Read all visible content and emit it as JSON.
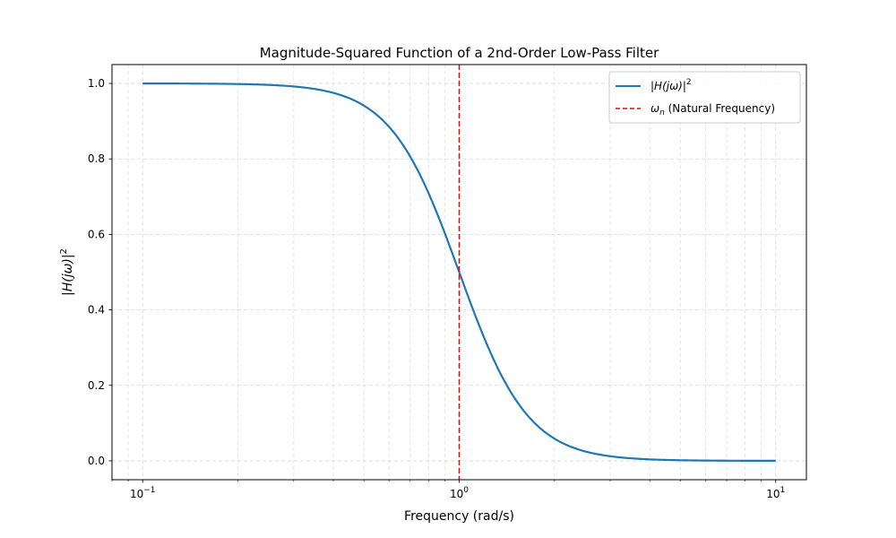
{
  "chart_data": {
    "type": "line",
    "title": "Magnitude-Squared Function of a 2nd-Order Low-Pass Filter",
    "xlabel": "Frequency (rad/s)",
    "ylabel_base": "|H(jω)|",
    "ylabel_sup": "2",
    "xscale": "log",
    "xlim": [
      0.08,
      12.5
    ],
    "ylim": [
      -0.05,
      1.05
    ],
    "x_ticks": [
      {
        "value": 0.1,
        "base": "10",
        "exp": "−1"
      },
      {
        "value": 1,
        "base": "10",
        "exp": "0"
      },
      {
        "value": 10,
        "base": "10",
        "exp": "1"
      }
    ],
    "y_ticks": [
      {
        "value": 0.0,
        "label": "0.0"
      },
      {
        "value": 0.2,
        "label": "0.2"
      },
      {
        "value": 0.4,
        "label": "0.4"
      },
      {
        "value": 0.6,
        "label": "0.6"
      },
      {
        "value": 0.8,
        "label": "0.8"
      },
      {
        "value": 1.0,
        "label": "1.0"
      }
    ],
    "grid": true,
    "legend_position": "top-right",
    "series": [
      {
        "name": "|H(jω)|²",
        "legend_base": "|H(jω)|",
        "legend_sup": "2",
        "color": "#1f77b4",
        "style": "solid",
        "formula": "1/(1+w^4)",
        "x_range": [
          0.1,
          10
        ],
        "sample_points": [
          {
            "x": 0.1,
            "y": 1.0
          },
          {
            "x": 0.3,
            "y": 0.992
          },
          {
            "x": 0.5,
            "y": 0.941
          },
          {
            "x": 0.7,
            "y": 0.806
          },
          {
            "x": 1.0,
            "y": 0.5
          },
          {
            "x": 1.5,
            "y": 0.165
          },
          {
            "x": 2.0,
            "y": 0.059
          },
          {
            "x": 3.0,
            "y": 0.012
          },
          {
            "x": 5.0,
            "y": 0.0016
          },
          {
            "x": 10.0,
            "y": 0.0001
          }
        ]
      },
      {
        "name": "ωn (Natural Frequency)",
        "legend_sym": "ω",
        "legend_sub": "n",
        "legend_rest": " (Natural Frequency)",
        "color": "#ff0000",
        "style": "dashed",
        "type": "vline",
        "x": 1.0
      }
    ]
  }
}
